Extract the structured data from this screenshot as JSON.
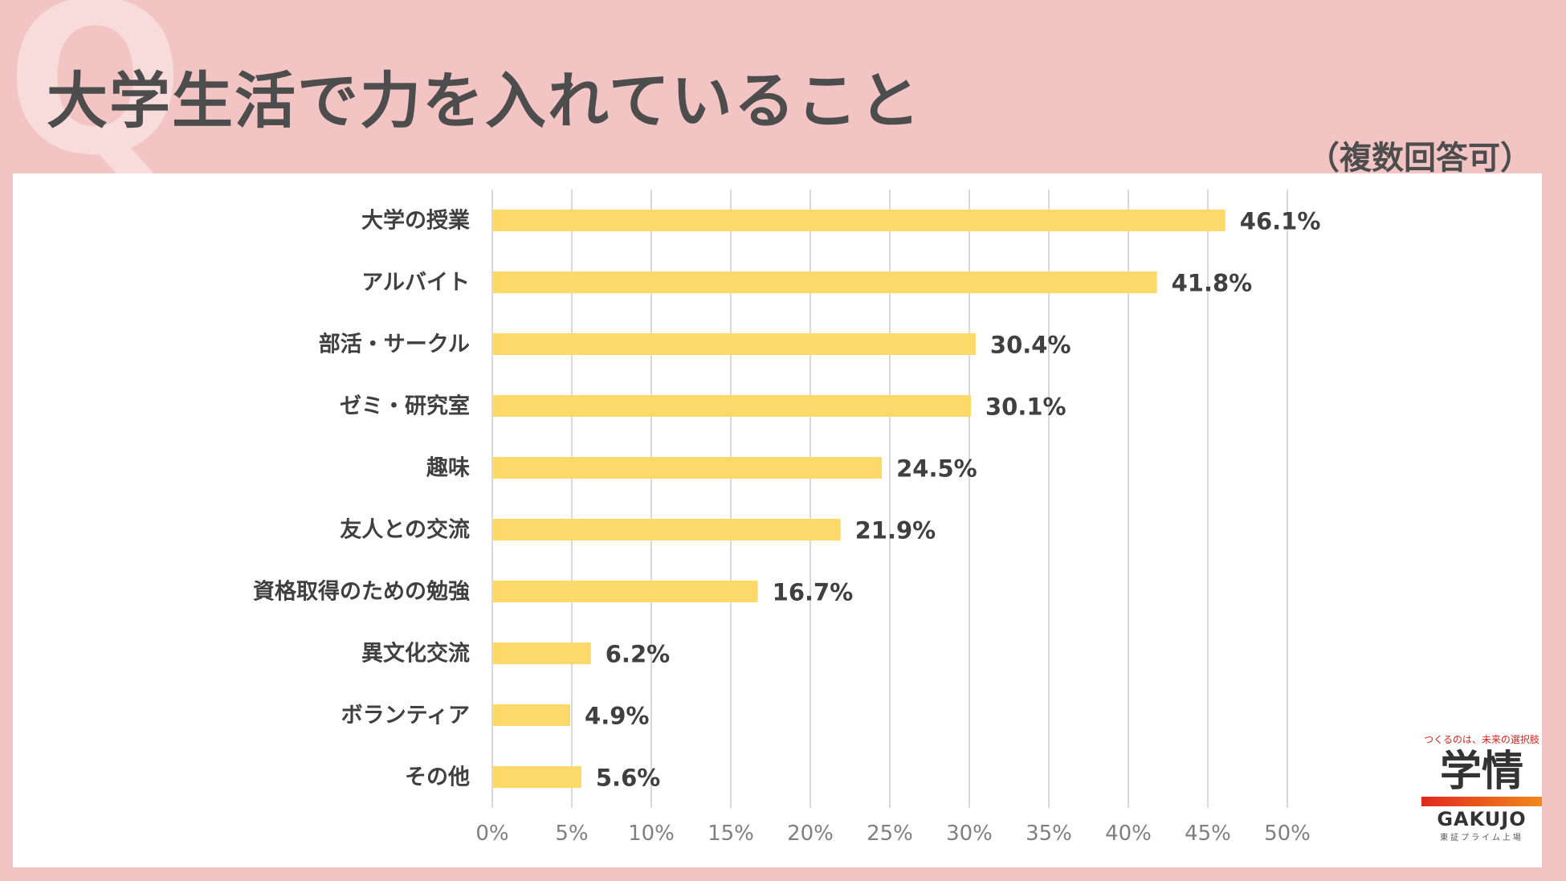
{
  "header": {
    "q_mark": "Q",
    "title": "大学生活で力を入れていること",
    "subtitle": "（複数回答可）"
  },
  "chart_data": {
    "type": "bar",
    "orientation": "horizontal",
    "title": "大学生活で力を入れていること",
    "subtitle": "（複数回答可）",
    "categories": [
      "大学の授業",
      "アルバイト",
      "部活・サークル",
      "ゼミ・研究室",
      "趣味",
      "友人との交流",
      "資格取得のための勉強",
      "異文化交流",
      "ボランティア",
      "その他"
    ],
    "values": [
      46.1,
      41.8,
      30.4,
      30.1,
      24.5,
      21.9,
      16.7,
      6.2,
      4.9,
      5.6
    ],
    "value_labels": [
      "46.1%",
      "41.8%",
      "30.4%",
      "30.1%",
      "24.5%",
      "21.9%",
      "16.7%",
      "6.2%",
      "4.9%",
      "5.6%"
    ],
    "xlim": [
      0,
      50
    ],
    "x_ticks": [
      "0%",
      "5%",
      "10%",
      "15%",
      "20%",
      "25%",
      "30%",
      "35%",
      "40%",
      "45%",
      "50%"
    ],
    "grid": true,
    "bar_color": "#fdd96a"
  },
  "logo": {
    "tagline": "つくるのは、未来の選択肢",
    "kanji": "学情",
    "name": "GAKUJO",
    "sub": "東証プライム上場"
  }
}
